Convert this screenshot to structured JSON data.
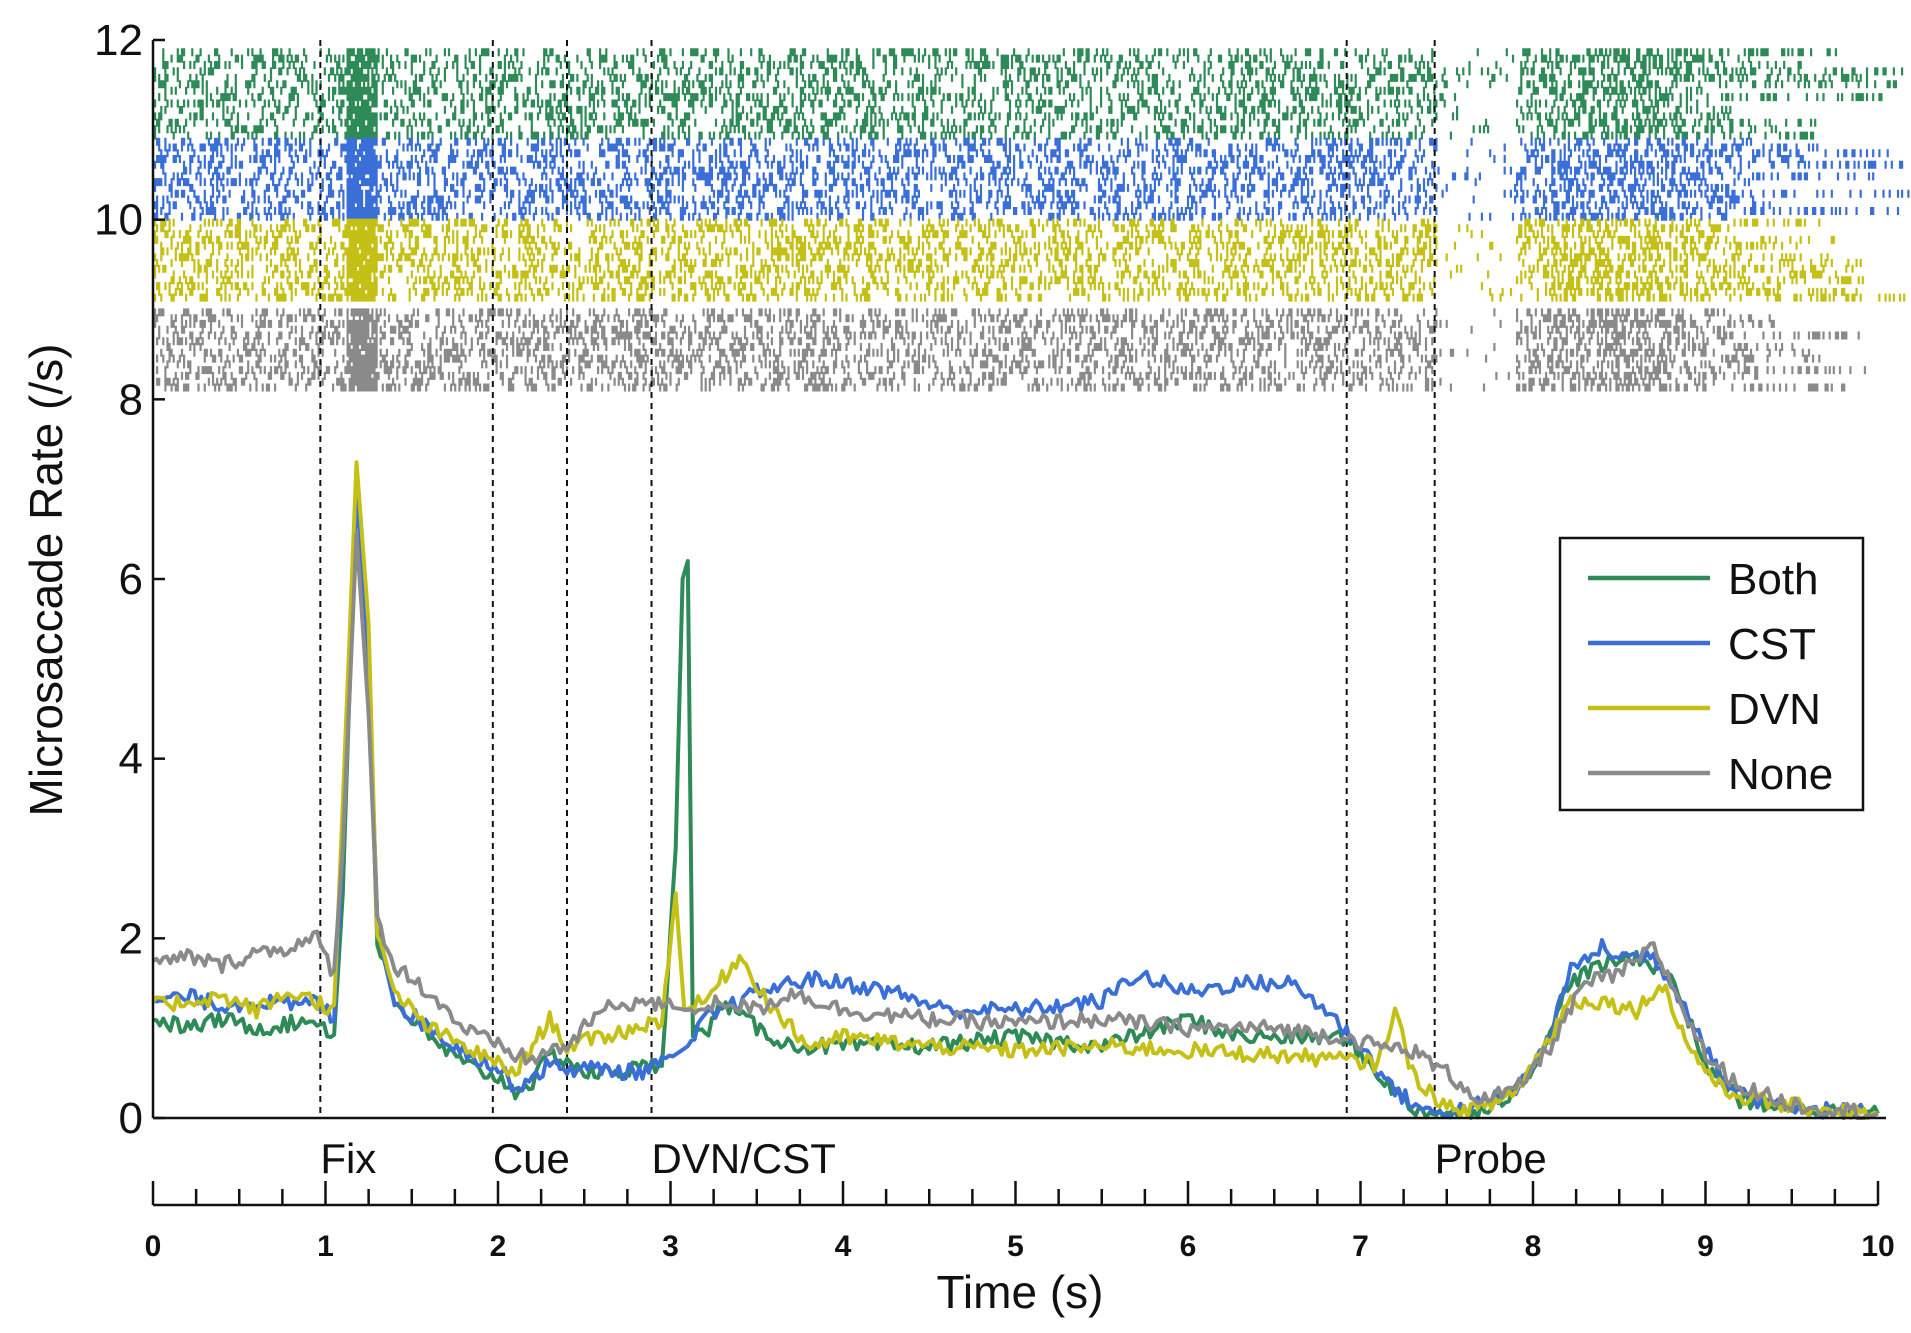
{
  "chart_data": {
    "type": "line",
    "title": "",
    "xlabel": "Time (s)",
    "ylabel": "Microsaccade Rate (/s)",
    "xlim": [
      0,
      10
    ],
    "ylim": [
      0,
      12
    ],
    "x_ticks": [
      "0",
      "1",
      "2",
      "3",
      "4",
      "5",
      "6",
      "7",
      "8",
      "9",
      "10"
    ],
    "y_ticks": [
      "0",
      "2",
      "4",
      "6",
      "8",
      "10",
      "12"
    ],
    "legend_position": "right",
    "events": [
      {
        "time": 0.97,
        "label": "Fix"
      },
      {
        "time": 1.97,
        "label": "Cue"
      },
      {
        "time": 2.4,
        "label": ""
      },
      {
        "time": 2.89,
        "label": "DVN/CST"
      },
      {
        "time": 6.92,
        "label": ""
      },
      {
        "time": 7.43,
        "label": "Probe"
      }
    ],
    "series": [
      {
        "name": "Both",
        "color": "#2e8b57",
        "raster_range": [
          10.9,
          11.9
        ],
        "points": [
          [
            0,
            1.1
          ],
          [
            0.2,
            1.0
          ],
          [
            0.4,
            1.1
          ],
          [
            0.6,
            1.0
          ],
          [
            0.8,
            1.05
          ],
          [
            0.95,
            1.1
          ],
          [
            1.05,
            0.9
          ],
          [
            1.1,
            2.5
          ],
          [
            1.18,
            7.1
          ],
          [
            1.25,
            5.0
          ],
          [
            1.3,
            2.0
          ],
          [
            1.4,
            1.3
          ],
          [
            1.6,
            0.9
          ],
          [
            1.8,
            0.6
          ],
          [
            2.0,
            0.45
          ],
          [
            2.1,
            0.3
          ],
          [
            2.2,
            0.4
          ],
          [
            2.3,
            0.7
          ],
          [
            2.4,
            0.65
          ],
          [
            2.5,
            0.5
          ],
          [
            2.6,
            0.5
          ],
          [
            2.8,
            0.55
          ],
          [
            2.95,
            0.6
          ],
          [
            3.03,
            3.0
          ],
          [
            3.07,
            6.0
          ],
          [
            3.1,
            6.2
          ],
          [
            3.13,
            1.0
          ],
          [
            3.2,
            0.9
          ],
          [
            3.3,
            1.3
          ],
          [
            3.5,
            1.0
          ],
          [
            3.7,
            0.8
          ],
          [
            4.0,
            0.8
          ],
          [
            4.5,
            0.8
          ],
          [
            5.0,
            0.9
          ],
          [
            5.5,
            0.8
          ],
          [
            6.0,
            1.1
          ],
          [
            6.3,
            0.9
          ],
          [
            6.6,
            0.9
          ],
          [
            6.9,
            0.9
          ],
          [
            7.1,
            0.5
          ],
          [
            7.3,
            0.1
          ],
          [
            7.5,
            0.05
          ],
          [
            7.7,
            0.1
          ],
          [
            7.9,
            0.3
          ],
          [
            8.1,
            0.9
          ],
          [
            8.2,
            1.5
          ],
          [
            8.4,
            1.7
          ],
          [
            8.6,
            1.8
          ],
          [
            8.8,
            1.6
          ],
          [
            9.0,
            0.6
          ],
          [
            9.2,
            0.2
          ],
          [
            9.5,
            0.1
          ],
          [
            10,
            0.05
          ]
        ]
      },
      {
        "name": "CST",
        "color": "#3a6fd8",
        "raster_range": [
          10.0,
          10.9
        ],
        "points": [
          [
            0,
            1.3
          ],
          [
            0.2,
            1.35
          ],
          [
            0.4,
            1.25
          ],
          [
            0.6,
            1.3
          ],
          [
            0.8,
            1.25
          ],
          [
            0.95,
            1.3
          ],
          [
            1.05,
            1.1
          ],
          [
            1.1,
            3.0
          ],
          [
            1.18,
            7.0
          ],
          [
            1.25,
            5.0
          ],
          [
            1.3,
            2.2
          ],
          [
            1.4,
            1.3
          ],
          [
            1.6,
            1.0
          ],
          [
            1.8,
            0.75
          ],
          [
            2.0,
            0.55
          ],
          [
            2.1,
            0.35
          ],
          [
            2.2,
            0.45
          ],
          [
            2.3,
            0.6
          ],
          [
            2.4,
            0.55
          ],
          [
            2.6,
            0.55
          ],
          [
            2.8,
            0.5
          ],
          [
            2.95,
            0.6
          ],
          [
            3.1,
            0.8
          ],
          [
            3.2,
            1.1
          ],
          [
            3.5,
            1.4
          ],
          [
            3.8,
            1.55
          ],
          [
            4.0,
            1.5
          ],
          [
            4.3,
            1.4
          ],
          [
            4.6,
            1.2
          ],
          [
            5.0,
            1.2
          ],
          [
            5.5,
            1.3
          ],
          [
            5.7,
            1.6
          ],
          [
            6.0,
            1.4
          ],
          [
            6.3,
            1.5
          ],
          [
            6.6,
            1.5
          ],
          [
            6.8,
            1.2
          ],
          [
            7.0,
            0.8
          ],
          [
            7.2,
            0.3
          ],
          [
            7.4,
            0.05
          ],
          [
            7.6,
            0.1
          ],
          [
            7.9,
            0.3
          ],
          [
            8.1,
            0.9
          ],
          [
            8.2,
            1.6
          ],
          [
            8.4,
            1.9
          ],
          [
            8.5,
            1.8
          ],
          [
            8.7,
            1.8
          ],
          [
            8.9,
            1.2
          ],
          [
            9.1,
            0.4
          ],
          [
            9.3,
            0.2
          ],
          [
            9.6,
            0.1
          ],
          [
            10,
            0.05
          ]
        ]
      },
      {
        "name": "DVN",
        "color": "#c5c016",
        "raster_range": [
          9.1,
          10.0
        ],
        "points": [
          [
            0,
            1.25
          ],
          [
            0.2,
            1.3
          ],
          [
            0.4,
            1.35
          ],
          [
            0.6,
            1.2
          ],
          [
            0.8,
            1.4
          ],
          [
            0.95,
            1.3
          ],
          [
            1.05,
            1.2
          ],
          [
            1.1,
            3.5
          ],
          [
            1.18,
            7.3
          ],
          [
            1.25,
            5.5
          ],
          [
            1.3,
            2.0
          ],
          [
            1.4,
            1.4
          ],
          [
            1.6,
            1.0
          ],
          [
            1.8,
            0.8
          ],
          [
            2.0,
            0.6
          ],
          [
            2.1,
            0.5
          ],
          [
            2.2,
            0.8
          ],
          [
            2.3,
            1.1
          ],
          [
            2.4,
            0.8
          ],
          [
            2.6,
            0.9
          ],
          [
            2.8,
            1.0
          ],
          [
            2.95,
            1.1
          ],
          [
            3.03,
            2.5
          ],
          [
            3.08,
            1.2
          ],
          [
            3.2,
            1.3
          ],
          [
            3.4,
            1.8
          ],
          [
            3.6,
            1.2
          ],
          [
            3.8,
            0.8
          ],
          [
            4.0,
            0.9
          ],
          [
            4.5,
            0.8
          ],
          [
            5.0,
            0.75
          ],
          [
            5.5,
            0.8
          ],
          [
            6.0,
            0.75
          ],
          [
            6.5,
            0.7
          ],
          [
            6.9,
            0.65
          ],
          [
            7.1,
            0.6
          ],
          [
            7.2,
            1.2
          ],
          [
            7.3,
            0.5
          ],
          [
            7.5,
            0.1
          ],
          [
            7.7,
            0.1
          ],
          [
            7.9,
            0.3
          ],
          [
            8.1,
            0.9
          ],
          [
            8.2,
            1.3
          ],
          [
            8.4,
            1.3
          ],
          [
            8.6,
            1.2
          ],
          [
            8.75,
            1.5
          ],
          [
            8.9,
            0.8
          ],
          [
            9.1,
            0.3
          ],
          [
            9.4,
            0.15
          ],
          [
            9.7,
            0.1
          ],
          [
            10,
            0.05
          ]
        ]
      },
      {
        "name": "None",
        "color": "#8a8a8a",
        "raster_range": [
          8.1,
          9.0
        ],
        "points": [
          [
            0,
            1.7
          ],
          [
            0.2,
            1.8
          ],
          [
            0.4,
            1.7
          ],
          [
            0.6,
            1.85
          ],
          [
            0.8,
            1.9
          ],
          [
            0.95,
            2.0
          ],
          [
            1.05,
            1.6
          ],
          [
            1.1,
            3.0
          ],
          [
            1.18,
            6.5
          ],
          [
            1.25,
            4.5
          ],
          [
            1.3,
            2.2
          ],
          [
            1.4,
            1.7
          ],
          [
            1.6,
            1.4
          ],
          [
            1.8,
            1.0
          ],
          [
            2.0,
            0.8
          ],
          [
            2.1,
            0.7
          ],
          [
            2.2,
            0.65
          ],
          [
            2.3,
            0.75
          ],
          [
            2.4,
            0.8
          ],
          [
            2.6,
            1.2
          ],
          [
            2.8,
            1.3
          ],
          [
            2.95,
            1.25
          ],
          [
            3.1,
            1.2
          ],
          [
            3.3,
            1.3
          ],
          [
            3.5,
            1.2
          ],
          [
            3.7,
            1.4
          ],
          [
            4.0,
            1.2
          ],
          [
            4.5,
            1.1
          ],
          [
            5.0,
            1.05
          ],
          [
            5.5,
            1.1
          ],
          [
            6.0,
            1.0
          ],
          [
            6.5,
            1.0
          ],
          [
            6.9,
            0.9
          ],
          [
            7.1,
            0.8
          ],
          [
            7.3,
            0.75
          ],
          [
            7.5,
            0.5
          ],
          [
            7.7,
            0.2
          ],
          [
            7.9,
            0.3
          ],
          [
            8.1,
            0.8
          ],
          [
            8.3,
            1.5
          ],
          [
            8.5,
            1.6
          ],
          [
            8.7,
            1.9
          ],
          [
            8.8,
            1.5
          ],
          [
            9.0,
            0.7
          ],
          [
            9.2,
            0.35
          ],
          [
            9.5,
            0.15
          ],
          [
            10,
            0.05
          ]
        ]
      }
    ]
  }
}
